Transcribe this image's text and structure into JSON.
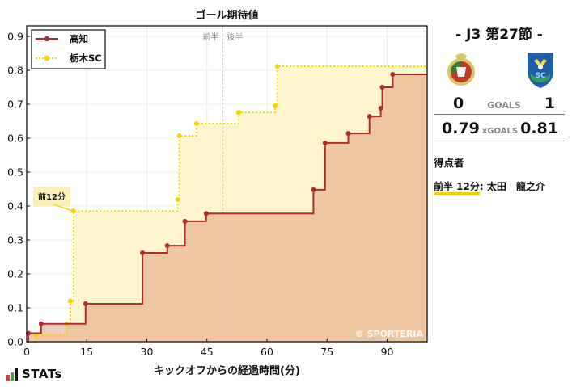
{
  "chart_data": {
    "type": "line",
    "subtype": "step-area",
    "title": "ゴール期待値",
    "xlabel": "キックオフからの経過時間(分)",
    "ylabel": "",
    "xlim": [
      0,
      100
    ],
    "ylim": [
      0,
      0.93
    ],
    "xticks": [
      0,
      15,
      30,
      45,
      60,
      75,
      90
    ],
    "yticks": [
      0.0,
      0.1,
      0.2,
      0.3,
      0.4,
      0.5,
      0.6,
      0.7,
      0.8,
      0.9
    ],
    "grid": true,
    "legend_position": "upper left",
    "halftime_marker": {
      "x": 49,
      "labels": [
        "前半",
        "後半"
      ]
    },
    "annotation": {
      "text": "前12分",
      "x": 11.7,
      "y": 0.385
    },
    "watermark": "© SPORTERIA",
    "series": [
      {
        "name": "高知",
        "color": "#b22a2e",
        "fill": "#f2cfcf",
        "style": "solid",
        "points": [
          [
            0.4,
            0.025
          ],
          [
            3.6,
            0.053
          ],
          [
            14.7,
            0.112
          ],
          [
            28.9,
            0.262
          ],
          [
            35.1,
            0.283
          ],
          [
            39.5,
            0.355
          ],
          [
            44.8,
            0.378
          ],
          [
            71.6,
            0.448
          ],
          [
            74.5,
            0.586
          ],
          [
            80.3,
            0.614
          ],
          [
            85.6,
            0.664
          ],
          [
            88.4,
            0.688
          ],
          [
            88.8,
            0.75
          ],
          [
            91.4,
            0.788
          ]
        ],
        "final": 0.79
      },
      {
        "name": "栃木SC",
        "color": "#f5d300",
        "fill": "#fdf5cd",
        "style": "dotted",
        "points": [
          [
            2.2,
            0.02
          ],
          [
            9.9,
            0.052
          ],
          [
            10.9,
            0.12
          ],
          [
            11.7,
            0.385
          ],
          [
            37.7,
            0.419
          ],
          [
            38.1,
            0.607
          ],
          [
            42.4,
            0.643
          ],
          [
            52.9,
            0.676
          ],
          [
            62.0,
            0.695
          ],
          [
            62.6,
            0.812
          ]
        ],
        "final": 0.81
      }
    ]
  },
  "chart": {
    "title": "ゴール期待値",
    "xlabel": "キックオフからの経過時間(分)",
    "half_first": "前半",
    "half_second": "後半",
    "annotation": "前12分",
    "watermark": "© SPORTERIA",
    "legend": [
      "高知",
      "栃木SC"
    ]
  },
  "match": {
    "round": "-  J3 第27節  -",
    "home": {
      "name": "高知",
      "goals": "0",
      "xg": "0.79"
    },
    "away": {
      "name": "栃木SC",
      "goals": "1",
      "xg": "0.81"
    },
    "goals_label": "GOALS",
    "xgoals_label": "xGOALS",
    "scorers_title": "得点者",
    "scorers": [
      {
        "time": "前半 12分",
        "player": ": 太田　龍之介"
      }
    ]
  },
  "brand": {
    "logo_text": "STATs"
  }
}
